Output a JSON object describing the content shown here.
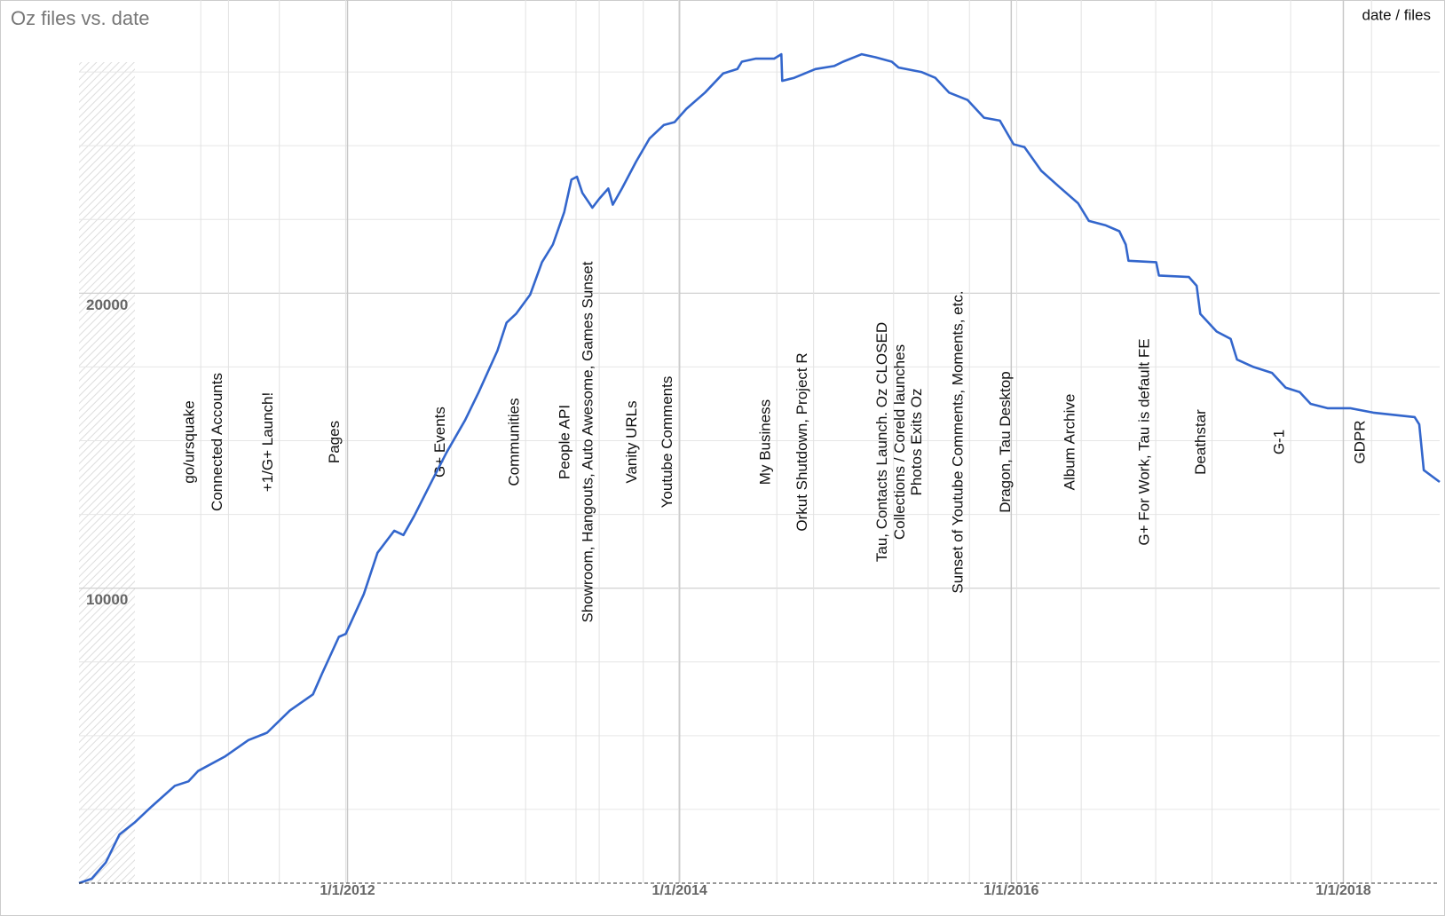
{
  "chart_data": {
    "type": "line",
    "title": "Oz files vs. date",
    "legend": "date / files",
    "xlim": [
      "2010-05-20",
      "2018-08-01"
    ],
    "xticks": [
      {
        "value": "2012-01-01",
        "label": "1/1/2012"
      },
      {
        "value": "2014-01-01",
        "label": "1/1/2014"
      },
      {
        "value": "2016-01-01",
        "label": "1/1/2016"
      },
      {
        "value": "2018-01-01",
        "label": "1/1/2018"
      }
    ],
    "ylim": [
      0,
      30000
    ],
    "yticks": [
      10000,
      20000
    ],
    "minor_yticks": [
      2500,
      5000,
      7500,
      12500,
      15000,
      17500,
      22500,
      25000,
      27500
    ],
    "grid": true,
    "x": [
      "2010-05-20",
      "2010-06-17",
      "2010-07-18",
      "2010-08-17",
      "2010-09-19",
      "2010-10-27",
      "2010-12-17",
      "2011-01-16",
      "2011-02-06",
      "2011-04-07",
      "2011-05-28",
      "2011-07-08",
      "2011-08-27",
      "2011-10-17",
      "2011-11-06",
      "2011-12-13",
      "2011-12-28",
      "2012-02-06",
      "2012-03-07",
      "2012-04-13",
      "2012-05-03",
      "2012-05-27",
      "2012-07-07",
      "2012-08-06",
      "2012-09-16",
      "2012-10-16",
      "2012-11-26",
      "2012-12-16",
      "2013-01-06",
      "2013-02-06",
      "2013-03-04",
      "2013-03-28",
      "2013-04-22",
      "2013-05-08",
      "2013-05-20",
      "2013-06-01",
      "2013-06-23",
      "2013-07-08",
      "2013-07-28",
      "2013-08-07",
      "2013-08-27",
      "2013-09-27",
      "2013-10-27",
      "2013-11-27",
      "2013-12-21",
      "2014-01-16",
      "2014-02-26",
      "2014-04-07",
      "2014-05-08",
      "2014-05-18",
      "2014-06-17",
      "2014-07-28",
      "2014-08-13",
      "2014-08-15",
      "2014-09-10",
      "2014-10-27",
      "2014-12-07",
      "2014-12-27",
      "2015-02-06",
      "2015-03-08",
      "2015-04-13",
      "2015-04-28",
      "2015-06-17",
      "2015-07-18",
      "2015-08-17",
      "2015-09-27",
      "2015-11-02",
      "2015-12-07",
      "2016-01-06",
      "2016-01-30",
      "2016-03-07",
      "2016-04-16",
      "2016-05-27",
      "2016-06-20",
      "2016-07-27",
      "2016-08-26",
      "2016-09-09",
      "2016-09-15",
      "2016-11-15",
      "2016-11-21",
      "2017-01-26",
      "2017-02-12",
      "2017-02-20",
      "2017-03-28",
      "2017-04-28",
      "2017-05-12",
      "2017-06-17",
      "2017-07-28",
      "2017-08-27",
      "2017-09-27",
      "2017-10-21",
      "2017-11-27",
      "2018-01-16",
      "2018-03-08",
      "2018-06-07",
      "2018-06-17",
      "2018-06-27",
      "2018-08-01"
    ],
    "series": [
      {
        "name": "files",
        "color": "#3366cc",
        "values": [
          0,
          150,
          700,
          1650,
          2050,
          2600,
          3300,
          3450,
          3800,
          4300,
          4850,
          5100,
          5850,
          6400,
          7100,
          8350,
          8450,
          9800,
          11200,
          11950,
          11800,
          12450,
          13700,
          14600,
          15700,
          16650,
          18050,
          19000,
          19300,
          19950,
          21050,
          21650,
          22750,
          23850,
          23950,
          23400,
          22900,
          23200,
          23550,
          23000,
          23550,
          24450,
          25250,
          25700,
          25800,
          26250,
          26800,
          27450,
          27600,
          27850,
          27950,
          27950,
          28100,
          27200,
          27300,
          27600,
          27700,
          27850,
          28100,
          28000,
          27850,
          27650,
          27500,
          27300,
          26800,
          26550,
          25950,
          25850,
          25050,
          24950,
          24150,
          23600,
          23050,
          22450,
          22300,
          22100,
          21650,
          21100,
          21050,
          20600,
          20550,
          20250,
          19300,
          18700,
          18450,
          17750,
          17500,
          17300,
          16800,
          16650,
          16250,
          16100,
          16100,
          15950,
          15800,
          15550,
          14000,
          13600
        ]
      }
    ],
    "annotations": [
      {
        "date": "2011-02-12",
        "text": [
          "go/ursquake"
        ]
      },
      {
        "date": "2011-04-14",
        "text": [
          "Connected Accounts"
        ]
      },
      {
        "date": "2011-08-04",
        "text": [
          "+1/G+ Launch!"
        ]
      },
      {
        "date": "2011-12-28",
        "text": [
          "Pages"
        ]
      },
      {
        "date": "2012-08-17",
        "text": [
          "G+ Events"
        ]
      },
      {
        "date": "2013-01-27",
        "text": [
          "Communities"
        ]
      },
      {
        "date": "2013-05-18",
        "text": [
          "People API"
        ]
      },
      {
        "date": "2013-07-08",
        "text": [
          "Showroom, Hangouts, Auto Awesome, Games Sunset"
        ]
      },
      {
        "date": "2013-10-13",
        "text": [
          "Vanity URLs"
        ]
      },
      {
        "date": "2013-12-30",
        "text": [
          "Youtube Comments"
        ]
      },
      {
        "date": "2014-08-03",
        "text": [
          "My Business"
        ]
      },
      {
        "date": "2014-10-23",
        "text": [
          "Orkut Shutdown, Project R"
        ]
      },
      {
        "date": "2015-04-17",
        "text": [
          "Tau, Contacts Launch.  Oz CLOSED"
        ]
      },
      {
        "date": "2015-07-02",
        "text": [
          "Collections / Coreld launches",
          "Photos Exits Oz"
        ]
      },
      {
        "date": "2015-10-01",
        "text": [
          "Sunset of Youtube Comments, Moments, etc."
        ]
      },
      {
        "date": "2016-01-13",
        "text": [
          "Dragon, Tau Desktop"
        ]
      },
      {
        "date": "2016-06-03",
        "text": [
          "Album Archive"
        ]
      },
      {
        "date": "2016-11-14",
        "text": [
          "G+ For Work, Tau is default FE"
        ]
      },
      {
        "date": "2017-03-18",
        "text": [
          "Deathstar"
        ]
      },
      {
        "date": "2017-09-07",
        "text": [
          "G-1"
        ]
      },
      {
        "date": "2018-03-04",
        "text": [
          "GDPR"
        ]
      }
    ]
  }
}
